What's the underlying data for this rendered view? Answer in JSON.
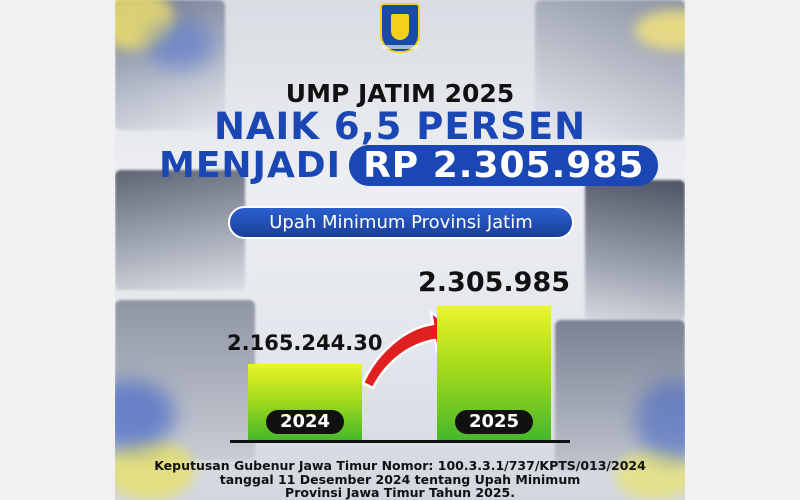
{
  "header": {
    "line1": "UMP JATIM 2025",
    "line2": "NAIK 6,5 PERSEN",
    "line3_prefix": "MENJADI",
    "line3_highlight": "RP 2.305.985",
    "pill": "Upah Minimum Provinsi Jatim"
  },
  "logo_icon": "east-java-emblem-icon",
  "colors": {
    "brand_blue": "#1a47b3",
    "bar_top": "#eaf52a",
    "bar_bottom": "#45b82a",
    "arrow": "#e02020"
  },
  "chart_data": {
    "type": "bar",
    "categories": [
      "2024",
      "2025"
    ],
    "values": [
      2165244.3,
      2305985
    ],
    "value_labels": [
      "2.165.244.30",
      "2.305.985"
    ],
    "title": "Upah Minimum Provinsi Jatim",
    "xlabel": "",
    "ylabel": "",
    "grid": false,
    "legend": "none"
  },
  "footer": {
    "line1": "Keputusan Gubenur Jawa Timur Nomor: 100.3.3.1/737/KPTS/013/2024",
    "line2": "tanggal 11 Desember 2024 tentang Upah Minimum",
    "line3": "Provinsi Jawa Timur Tahun 2025."
  }
}
